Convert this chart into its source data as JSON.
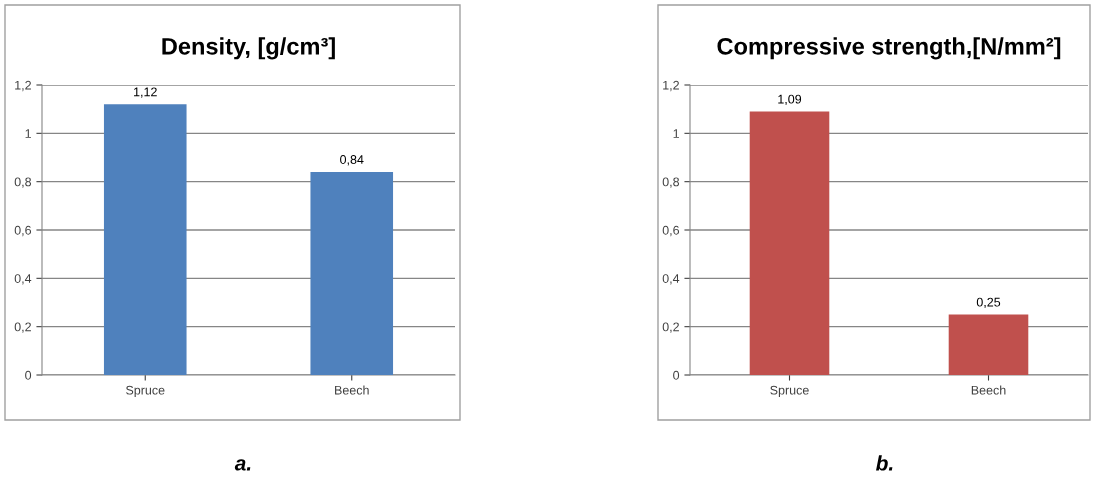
{
  "chart_data": [
    {
      "type": "bar",
      "title": "Density, [g/cm³]",
      "categories": [
        "Spruce",
        "Beech"
      ],
      "values": [
        1.12,
        0.84
      ],
      "value_labels": [
        "1,12",
        "0,84"
      ],
      "color": "#4f81bd",
      "ylim": [
        0,
        1.2
      ],
      "yticks": [
        {
          "value": 0,
          "label": "0"
        },
        {
          "value": 0.2,
          "label": "0,2"
        },
        {
          "value": 0.4,
          "label": "0,4"
        },
        {
          "value": 0.6,
          "label": "0,6"
        },
        {
          "value": 0.8,
          "label": "0,8"
        },
        {
          "value": 1,
          "label": "1"
        },
        {
          "value": 1.2,
          "label": "1,2"
        }
      ],
      "grid": "y",
      "annotations": [
        "a."
      ]
    },
    {
      "type": "bar",
      "title": "Compressive strength,[N/mm²]",
      "categories": [
        "Spruce",
        "Beech"
      ],
      "values": [
        1.09,
        0.25
      ],
      "value_labels": [
        "1,09",
        "0,25"
      ],
      "color": "#c0504d",
      "ylim": [
        0,
        1.2
      ],
      "yticks": [
        {
          "value": 0,
          "label": "0"
        },
        {
          "value": 0.2,
          "label": "0,2"
        },
        {
          "value": 0.4,
          "label": "0,4"
        },
        {
          "value": 0.6,
          "label": "0,6"
        },
        {
          "value": 0.8,
          "label": "0,8"
        },
        {
          "value": 1,
          "label": "1"
        },
        {
          "value": 1.2,
          "label": "1,2"
        }
      ],
      "grid": "y",
      "annotations": [
        "b."
      ]
    }
  ]
}
